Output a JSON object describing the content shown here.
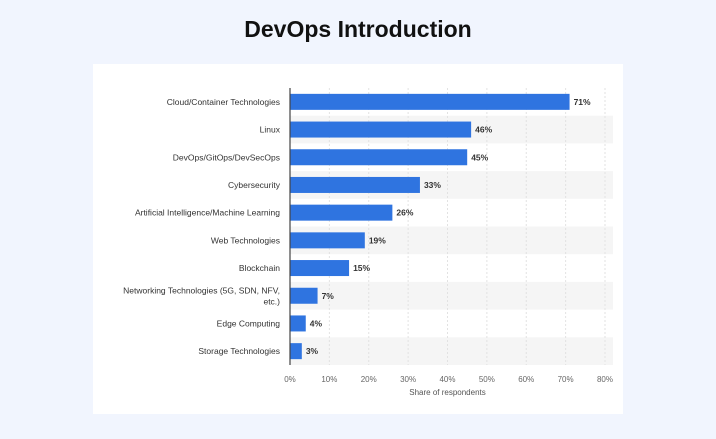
{
  "page": {
    "title": "DevOps Introduction"
  },
  "chart_data": {
    "type": "bar",
    "orientation": "horizontal",
    "categories": [
      "Cloud/Container Technologies",
      "Linux",
      "DevOps/GitOps/DevSecOps",
      "Cybersecurity",
      "Artificial Intelligence/Machine Learning",
      "Web Technologies",
      "Blockchain",
      "Networking Technologies (5G, SDN, NFV, etc.)",
      "Edge Computing",
      "Storage Technologies"
    ],
    "category_lines": [
      [
        "Cloud/Container Technologies"
      ],
      [
        "Linux"
      ],
      [
        "DevOps/GitOps/DevSecOps"
      ],
      [
        "Cybersecurity"
      ],
      [
        "Artificial Intelligence/Machine Learning"
      ],
      [
        "Web Technologies"
      ],
      [
        "Blockchain"
      ],
      [
        "Networking Technologies (5G, SDN, NFV,",
        "etc.)"
      ],
      [
        "Edge Computing"
      ],
      [
        "Storage Technologies"
      ]
    ],
    "values": [
      71,
      46,
      45,
      33,
      26,
      19,
      15,
      7,
      4,
      3
    ],
    "value_labels": [
      "71%",
      "46%",
      "45%",
      "33%",
      "26%",
      "19%",
      "15%",
      "7%",
      "4%",
      "3%"
    ],
    "xlabel": "Share of respondents",
    "xlim": [
      0,
      80
    ],
    "xticks": [
      0,
      10,
      20,
      30,
      40,
      50,
      60,
      70,
      80
    ],
    "xtick_labels": [
      "0%",
      "10%",
      "20%",
      "30%",
      "40%",
      "50%",
      "60%",
      "70%",
      "80%"
    ],
    "grid": "vertical",
    "bar_color": "#2f74e0",
    "stripe_color": "#f5f5f5"
  }
}
